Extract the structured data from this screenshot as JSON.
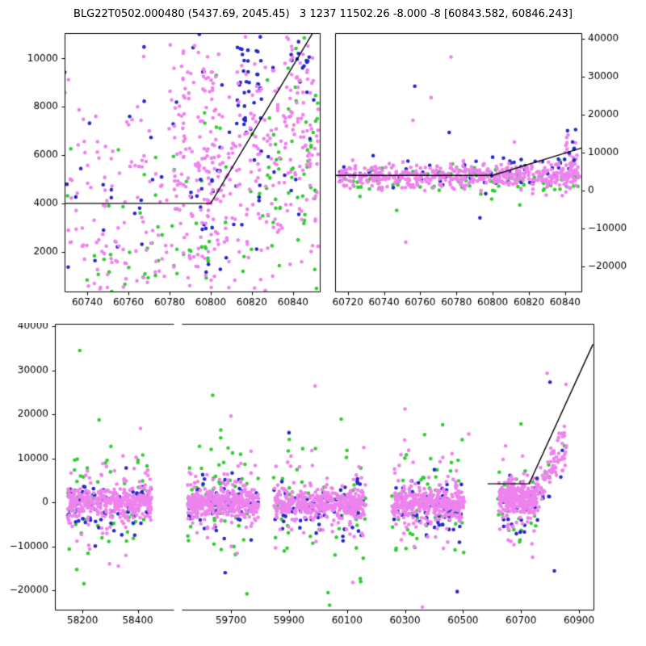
{
  "title": "BLG22T0502.000480 (5437.69, 2045.45)   3 1237 11502.26 -8.000 -8 [60843.582, 60846.243]",
  "colors": {
    "magenta": "#ee82ee",
    "blue": "#2828c8",
    "green": "#33cc33",
    "line": "#000000",
    "axis": "#000000",
    "background": "#ffffff"
  },
  "marker_radius": 2.3,
  "chart_data": [
    {
      "id": "top-left",
      "type": "scatter",
      "seed": 7,
      "x_range": [
        60729,
        60853
      ],
      "y_range": [
        350,
        11050
      ],
      "y_tick_side": "left",
      "x_ticks": [
        {
          "v": 60740,
          "label": "60740"
        },
        {
          "v": 60760,
          "label": "60760"
        },
        {
          "v": 60780,
          "label": "60780"
        },
        {
          "v": 60800,
          "label": "60800"
        },
        {
          "v": 60820,
          "label": "60820"
        },
        {
          "v": 60840,
          "label": "60840"
        }
      ],
      "y_ticks": [
        {
          "v": 2000,
          "label": "2000"
        },
        {
          "v": 4000,
          "label": "4000"
        },
        {
          "v": 6000,
          "label": "6000"
        },
        {
          "v": 8000,
          "label": "8000"
        },
        {
          "v": 10000,
          "label": "10000"
        }
      ],
      "line": [
        [
          60729,
          4000
        ],
        [
          60800,
          4000
        ],
        [
          60852,
          11400
        ]
      ],
      "clusters": [
        {
          "color": "green",
          "n": 60,
          "x": [
            60729,
            60853
          ],
          "y": [
            3500,
            2300
          ]
        },
        {
          "color": "green",
          "n": 45,
          "x": [
            60826,
            60853
          ],
          "y": [
            6300,
            2600
          ]
        },
        {
          "color": "green",
          "n": 22,
          "x": [
            60745,
            60800
          ],
          "y": [
            1700,
            1100
          ]
        },
        {
          "color": "blue",
          "n": 55,
          "x": [
            60729,
            60853
          ],
          "y": [
            5000,
            2800
          ]
        },
        {
          "color": "blue",
          "n": 40,
          "x": [
            60812,
            60825
          ],
          "y": [
            8700,
            1500
          ]
        },
        {
          "color": "blue",
          "n": 18,
          "x": [
            60795,
            60806
          ],
          "y": [
            4500,
            2500
          ]
        },
        {
          "color": "blue",
          "n": 14,
          "x": [
            60838,
            60848
          ],
          "y": [
            9800,
            900
          ]
        },
        {
          "color": "magenta",
          "n": 230,
          "x": [
            60729,
            60853
          ],
          "y": [
            4800,
            2700
          ]
        },
        {
          "color": "magenta",
          "n": 140,
          "x": [
            60786,
            60853
          ],
          "y": [
            6300,
            2600
          ]
        },
        {
          "color": "magenta",
          "n": 45,
          "x": [
            60836,
            60850
          ],
          "y": [
            8300,
            2000
          ]
        },
        {
          "color": "magenta",
          "n": 35,
          "x": [
            60796,
            60804
          ],
          "y": [
            5200,
            2600
          ]
        },
        {
          "color": "magenta",
          "n": 30,
          "x": [
            60782,
            60788
          ],
          "y": [
            5800,
            2200
          ]
        },
        {
          "color": "magenta",
          "n": 40,
          "x": [
            60729,
            60795
          ],
          "y": [
            2200,
            1200
          ]
        }
      ],
      "outliers": []
    },
    {
      "id": "top-right",
      "type": "scatter",
      "seed": 11,
      "x_range": [
        60713,
        60849
      ],
      "y_range": [
        -26600,
        41500
      ],
      "y_tick_side": "right",
      "x_ticks": [
        {
          "v": 60720,
          "label": "60720"
        },
        {
          "v": 60740,
          "label": "60740"
        },
        {
          "v": 60760,
          "label": "60760"
        },
        {
          "v": 60780,
          "label": "60780"
        },
        {
          "v": 60800,
          "label": "60800"
        },
        {
          "v": 60820,
          "label": "60820"
        },
        {
          "v": 60840,
          "label": "60840"
        }
      ],
      "y_ticks": [
        {
          "v": -20000,
          "label": "−20000"
        },
        {
          "v": -10000,
          "label": "−10000"
        },
        {
          "v": 0,
          "label": "0"
        },
        {
          "v": 10000,
          "label": "10000"
        },
        {
          "v": 20000,
          "label": "20000"
        },
        {
          "v": 30000,
          "label": "30000"
        },
        {
          "v": 40000,
          "label": "40000"
        }
      ],
      "line": [
        [
          60713,
          4000
        ],
        [
          60800,
          4000
        ],
        [
          60849,
          11200
        ]
      ],
      "clusters": [
        {
          "color": "green",
          "n": 85,
          "x": [
            60715,
            60848
          ],
          "y": [
            2700,
            1900
          ]
        },
        {
          "color": "blue",
          "n": 50,
          "x": [
            60715,
            60848
          ],
          "y": [
            4300,
            2000
          ]
        },
        {
          "color": "blue",
          "n": 10,
          "x": [
            60800,
            60845
          ],
          "y": [
            7600,
            1300
          ]
        },
        {
          "color": "magenta",
          "n": 430,
          "x": [
            60715,
            60848
          ],
          "y": [
            3700,
            1500
          ]
        },
        {
          "color": "magenta",
          "n": 60,
          "x": [
            60780,
            60848
          ],
          "y": [
            4600,
            2000
          ]
        },
        {
          "color": "magenta",
          "n": 22,
          "x": [
            60840,
            60847
          ],
          "y": [
            9500,
            4200
          ]
        },
        {
          "color": "blue",
          "n": 7,
          "x": [
            60841,
            60847
          ],
          "y": [
            12500,
            3000
          ]
        }
      ],
      "outliers": [
        [
          60757,
          27500,
          "blue"
        ],
        [
          60756,
          18500,
          "magenta"
        ],
        [
          60766,
          24500,
          "magenta"
        ],
        [
          60776,
          15300,
          "blue"
        ],
        [
          60777,
          35200,
          "magenta"
        ],
        [
          60734,
          9200,
          "blue"
        ],
        [
          60812,
          12800,
          "magenta"
        ],
        [
          60800,
          8800,
          "blue"
        ],
        [
          60752,
          -13600,
          "magenta"
        ],
        [
          60747,
          -5200,
          "green"
        ],
        [
          60793,
          -7200,
          "blue"
        ],
        [
          60815,
          -3800,
          "green"
        ]
      ]
    },
    {
      "id": "bottom",
      "type": "scatter",
      "seed": 23,
      "segments": [
        [
          58100,
          58530
        ],
        [
          59530,
          60950
        ]
      ],
      "y_range": [
        -24400,
        40550
      ],
      "y_tick_side": "left",
      "x_ticks": [
        {
          "v": 58200,
          "label": "58200"
        },
        {
          "v": 58400,
          "label": "58400"
        },
        {
          "v": 59700,
          "label": "59700"
        },
        {
          "v": 59900,
          "label": "59900"
        },
        {
          "v": 60100,
          "label": "60100"
        },
        {
          "v": 60300,
          "label": "60300"
        },
        {
          "v": 60500,
          "label": "60500"
        },
        {
          "v": 60700,
          "label": "60700"
        },
        {
          "v": 60900,
          "label": "60900"
        }
      ],
      "y_ticks": [
        {
          "v": -20000,
          "label": "−20000"
        },
        {
          "v": -10000,
          "label": "−10000"
        },
        {
          "v": 0,
          "label": "0"
        },
        {
          "v": 10000,
          "label": "10000"
        },
        {
          "v": 20000,
          "label": "20000"
        },
        {
          "v": 30000,
          "label": "30000"
        },
        {
          "v": 40000,
          "label": "40000"
        }
      ],
      "line": [
        [
          60585,
          4200
        ],
        [
          60728,
          4200
        ],
        [
          60948,
          35900
        ]
      ],
      "clusters": [
        {
          "color": "green",
          "n": 60,
          "x": [
            58145,
            58450
          ],
          "y": [
            -500,
            6500
          ]
        },
        {
          "color": "blue",
          "n": 70,
          "x": [
            58145,
            58450
          ],
          "y": [
            -700,
            3200
          ]
        },
        {
          "color": "magenta",
          "n": 75,
          "x": [
            58145,
            58450
          ],
          "y": [
            0,
            5200
          ]
        },
        {
          "color": "magenta",
          "n": 330,
          "x": [
            58145,
            58450
          ],
          "y": [
            -200,
            1600
          ]
        },
        {
          "color": "green",
          "n": 60,
          "x": [
            59550,
            59795
          ],
          "y": [
            -500,
            6500
          ]
        },
        {
          "color": "blue",
          "n": 70,
          "x": [
            59550,
            59795
          ],
          "y": [
            -700,
            3200
          ]
        },
        {
          "color": "magenta",
          "n": 75,
          "x": [
            59550,
            59795
          ],
          "y": [
            0,
            5200
          ]
        },
        {
          "color": "magenta",
          "n": 330,
          "x": [
            59550,
            59795
          ],
          "y": [
            -200,
            1600
          ]
        },
        {
          "color": "green",
          "n": 60,
          "x": [
            59845,
            60165
          ],
          "y": [
            -500,
            6500
          ]
        },
        {
          "color": "blue",
          "n": 70,
          "x": [
            59845,
            60165
          ],
          "y": [
            -700,
            3200
          ]
        },
        {
          "color": "magenta",
          "n": 75,
          "x": [
            59845,
            60165
          ],
          "y": [
            0,
            5200
          ]
        },
        {
          "color": "magenta",
          "n": 330,
          "x": [
            59845,
            60165
          ],
          "y": [
            -200,
            1600
          ]
        },
        {
          "color": "green",
          "n": 60,
          "x": [
            60255,
            60505
          ],
          "y": [
            -500,
            6500
          ]
        },
        {
          "color": "blue",
          "n": 70,
          "x": [
            60255,
            60505
          ],
          "y": [
            -700,
            3200
          ]
        },
        {
          "color": "magenta",
          "n": 75,
          "x": [
            60255,
            60505
          ],
          "y": [
            0,
            5200
          ]
        },
        {
          "color": "magenta",
          "n": 330,
          "x": [
            60255,
            60505
          ],
          "y": [
            -200,
            1600
          ]
        },
        {
          "color": "green",
          "n": 25,
          "x": [
            60620,
            60755
          ],
          "y": [
            0,
            5200
          ]
        },
        {
          "color": "blue",
          "n": 35,
          "x": [
            60620,
            60760
          ],
          "y": [
            -500,
            3000
          ]
        },
        {
          "color": "magenta",
          "n": 70,
          "x": [
            60620,
            60760
          ],
          "y": [
            500,
            4200
          ]
        },
        {
          "color": "magenta",
          "n": 220,
          "x": [
            60625,
            60755
          ],
          "y": [
            800,
            1700
          ]
        },
        {
          "color": "green",
          "n": 5,
          "trend": {
            "from": [
              60755,
              2500
            ],
            "to": [
              60855,
              12000
            ],
            "jitter": 2200
          }
        },
        {
          "color": "blue",
          "n": 8,
          "trend": {
            "from": [
              60755,
              2500
            ],
            "to": [
              60855,
              12500
            ],
            "jitter": 3000
          }
        },
        {
          "color": "magenta",
          "n": 70,
          "trend": {
            "from": [
              60755,
              2500
            ],
            "to": [
              60858,
              13500
            ],
            "jitter": 2600
          }
        }
      ],
      "outliers": [
        [
          58190,
          34500,
          "green"
        ],
        [
          58260,
          18700,
          "green"
        ],
        [
          58410,
          16800,
          "magenta"
        ],
        [
          58205,
          -18500,
          "green"
        ],
        [
          58330,
          -14500,
          "magenta"
        ],
        [
          59637,
          24300,
          "green"
        ],
        [
          59700,
          19600,
          "magenta"
        ],
        [
          59755,
          -20800,
          "green"
        ],
        [
          59680,
          -16000,
          "blue"
        ],
        [
          59990,
          26400,
          "magenta"
        ],
        [
          60080,
          18900,
          "green"
        ],
        [
          60040,
          -23400,
          "green"
        ],
        [
          60120,
          -18200,
          "magenta"
        ],
        [
          59900,
          15800,
          "blue"
        ],
        [
          60300,
          21200,
          "magenta"
        ],
        [
          60360,
          -23800,
          "magenta"
        ],
        [
          60430,
          17600,
          "green"
        ],
        [
          60480,
          -20300,
          "blue"
        ],
        [
          60520,
          15500,
          "magenta"
        ],
        [
          60790,
          29300,
          "magenta"
        ],
        [
          60800,
          27300,
          "blue"
        ],
        [
          60815,
          -15600,
          "blue"
        ],
        [
          60700,
          17800,
          "green"
        ],
        [
          60740,
          -12500,
          "magenta"
        ],
        [
          60855,
          26800,
          "magenta"
        ]
      ]
    }
  ]
}
